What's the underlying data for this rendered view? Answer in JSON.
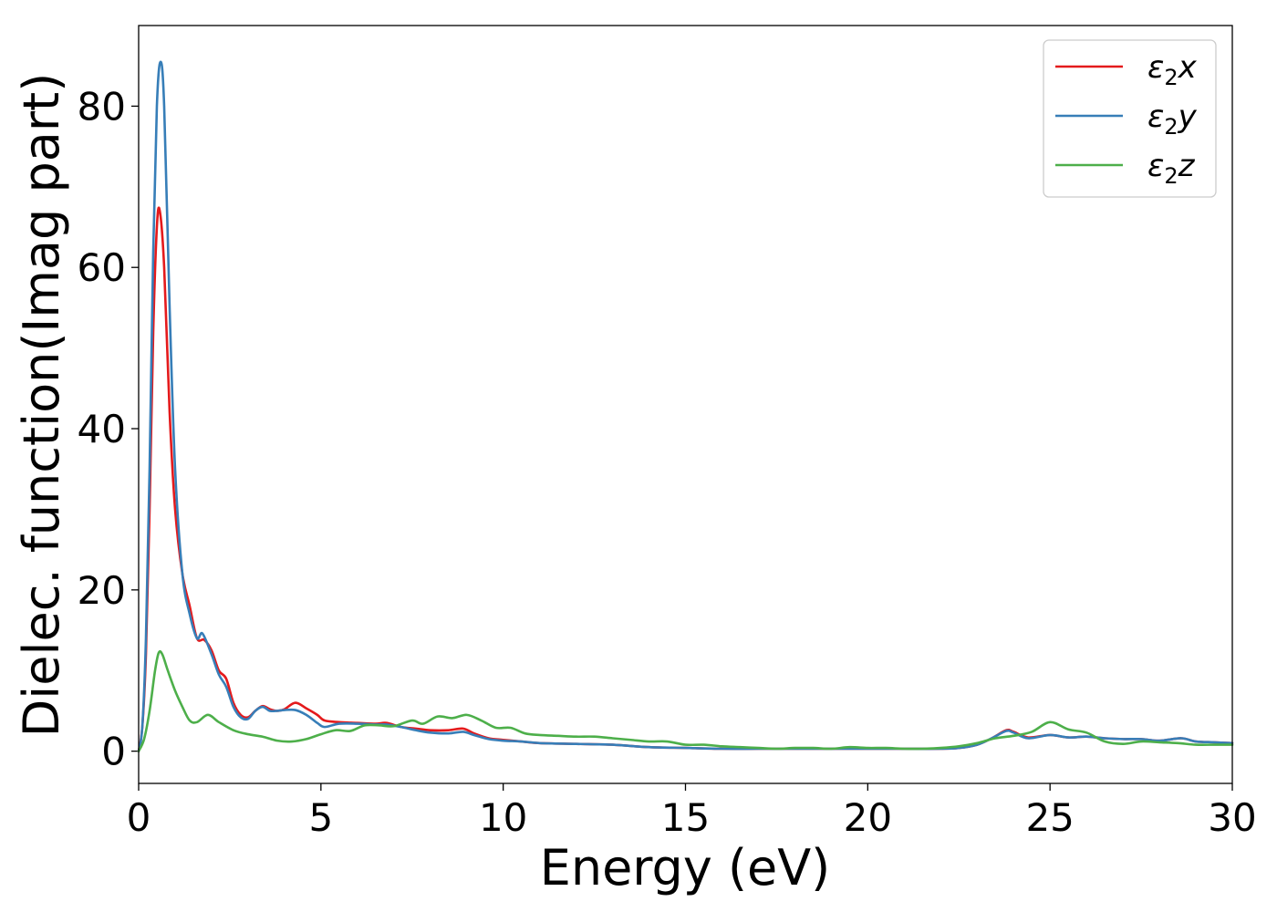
{
  "chart_data": {
    "type": "line",
    "title": "",
    "xlabel": "Energy (eV)",
    "ylabel": "Dielec. function(Imag part)",
    "xlim": [
      0,
      30
    ],
    "ylim": [
      -4,
      90
    ],
    "xticks": [
      0,
      5,
      10,
      15,
      20,
      25,
      30
    ],
    "xtick_labels": [
      "0",
      "5",
      "10",
      "15",
      "20",
      "25",
      "30"
    ],
    "yticks": [
      0,
      20,
      40,
      60,
      80
    ],
    "ytick_labels": [
      "0",
      "20",
      "40",
      "60",
      "80"
    ],
    "grid": false,
    "legend_position": "top-right",
    "series": [
      {
        "name": "ε₂x",
        "legend_main": "ε",
        "legend_sub": "2",
        "legend_suffix": "x",
        "color": "#e41a1c",
        "points": [
          [
            0,
            0
          ],
          [
            0.1,
            3
          ],
          [
            0.2,
            12
          ],
          [
            0.3,
            30
          ],
          [
            0.4,
            52
          ],
          [
            0.5,
            65
          ],
          [
            0.58,
            67
          ],
          [
            0.7,
            60
          ],
          [
            0.85,
            42
          ],
          [
            1.0,
            30
          ],
          [
            1.2,
            22
          ],
          [
            1.4,
            18
          ],
          [
            1.6,
            14
          ],
          [
            1.8,
            13.8
          ],
          [
            2.0,
            12.5
          ],
          [
            2.2,
            10
          ],
          [
            2.4,
            9
          ],
          [
            2.6,
            6
          ],
          [
            2.8,
            4.5
          ],
          [
            3.0,
            4.2
          ],
          [
            3.2,
            5
          ],
          [
            3.4,
            5.6
          ],
          [
            3.6,
            5.2
          ],
          [
            3.8,
            5
          ],
          [
            4.0,
            5.2
          ],
          [
            4.3,
            6
          ],
          [
            4.6,
            5.3
          ],
          [
            4.9,
            4.5
          ],
          [
            5.1,
            3.8
          ],
          [
            5.5,
            3.6
          ],
          [
            6.0,
            3.5
          ],
          [
            6.5,
            3.4
          ],
          [
            6.8,
            3.5
          ],
          [
            7.2,
            3.0
          ],
          [
            7.6,
            2.8
          ],
          [
            8.0,
            2.6
          ],
          [
            8.5,
            2.6
          ],
          [
            8.9,
            2.8
          ],
          [
            9.2,
            2.2
          ],
          [
            9.6,
            1.6
          ],
          [
            10.0,
            1.4
          ],
          [
            10.5,
            1.2
          ],
          [
            11.0,
            1.0
          ],
          [
            12.0,
            0.9
          ],
          [
            13.0,
            0.8
          ],
          [
            14.0,
            0.5
          ],
          [
            15.0,
            0.4
          ],
          [
            16.0,
            0.3
          ],
          [
            17.0,
            0.3
          ],
          [
            18.0,
            0.3
          ],
          [
            19.0,
            0.3
          ],
          [
            20.0,
            0.3
          ],
          [
            21.0,
            0.3
          ],
          [
            22.0,
            0.3
          ],
          [
            22.5,
            0.4
          ],
          [
            23.0,
            0.8
          ],
          [
            23.4,
            1.6
          ],
          [
            23.8,
            2.6
          ],
          [
            24.0,
            2.4
          ],
          [
            24.4,
            1.7
          ],
          [
            25.0,
            2.0
          ],
          [
            25.5,
            1.7
          ],
          [
            26.0,
            1.8
          ],
          [
            26.5,
            1.6
          ],
          [
            27.0,
            1.5
          ],
          [
            27.5,
            1.5
          ],
          [
            28.0,
            1.3
          ],
          [
            28.6,
            1.6
          ],
          [
            29.0,
            1.2
          ],
          [
            29.5,
            1.1
          ],
          [
            30.0,
            1.0
          ]
        ]
      },
      {
        "name": "ε₂y",
        "legend_main": "ε",
        "legend_sub": "2",
        "legend_suffix": "y",
        "color": "#377eb8",
        "points": [
          [
            0,
            0
          ],
          [
            0.1,
            3
          ],
          [
            0.2,
            14
          ],
          [
            0.3,
            35
          ],
          [
            0.4,
            62
          ],
          [
            0.5,
            80
          ],
          [
            0.6,
            85.5
          ],
          [
            0.7,
            80
          ],
          [
            0.85,
            55
          ],
          [
            1.0,
            35
          ],
          [
            1.2,
            22
          ],
          [
            1.4,
            17
          ],
          [
            1.6,
            14
          ],
          [
            1.75,
            14.6
          ],
          [
            2.0,
            12
          ],
          [
            2.2,
            9.5
          ],
          [
            2.4,
            8
          ],
          [
            2.6,
            5.5
          ],
          [
            2.8,
            4.2
          ],
          [
            3.0,
            4.0
          ],
          [
            3.2,
            5
          ],
          [
            3.4,
            5.5
          ],
          [
            3.6,
            5.0
          ],
          [
            3.8,
            5.0
          ],
          [
            4.0,
            5.1
          ],
          [
            4.3,
            5.1
          ],
          [
            4.6,
            4.5
          ],
          [
            4.9,
            3.5
          ],
          [
            5.1,
            3.0
          ],
          [
            5.5,
            3.4
          ],
          [
            6.0,
            3.4
          ],
          [
            6.5,
            3.3
          ],
          [
            6.8,
            3.3
          ],
          [
            7.2,
            3.0
          ],
          [
            7.6,
            2.6
          ],
          [
            8.0,
            2.3
          ],
          [
            8.5,
            2.2
          ],
          [
            8.9,
            2.4
          ],
          [
            9.2,
            2.0
          ],
          [
            9.6,
            1.5
          ],
          [
            10.0,
            1.3
          ],
          [
            10.5,
            1.2
          ],
          [
            11.0,
            1.0
          ],
          [
            12.0,
            0.9
          ],
          [
            13.0,
            0.8
          ],
          [
            14.0,
            0.5
          ],
          [
            15.0,
            0.4
          ],
          [
            16.0,
            0.3
          ],
          [
            17.0,
            0.3
          ],
          [
            18.0,
            0.3
          ],
          [
            19.0,
            0.3
          ],
          [
            20.0,
            0.3
          ],
          [
            21.0,
            0.3
          ],
          [
            22.0,
            0.3
          ],
          [
            22.5,
            0.4
          ],
          [
            23.0,
            0.8
          ],
          [
            23.4,
            1.6
          ],
          [
            23.8,
            2.5
          ],
          [
            24.0,
            2.3
          ],
          [
            24.4,
            1.6
          ],
          [
            25.0,
            2.0
          ],
          [
            25.5,
            1.7
          ],
          [
            26.0,
            1.8
          ],
          [
            26.5,
            1.6
          ],
          [
            27.0,
            1.5
          ],
          [
            27.5,
            1.5
          ],
          [
            28.0,
            1.3
          ],
          [
            28.6,
            1.6
          ],
          [
            29.0,
            1.2
          ],
          [
            29.5,
            1.1
          ],
          [
            30.0,
            1.0
          ]
        ]
      },
      {
        "name": "ε₂z",
        "legend_main": "ε",
        "legend_sub": "2",
        "legend_suffix": "z",
        "color": "#4daf4a",
        "points": [
          [
            0,
            0
          ],
          [
            0.15,
            1.5
          ],
          [
            0.3,
            5
          ],
          [
            0.45,
            10
          ],
          [
            0.55,
            12.2
          ],
          [
            0.65,
            12
          ],
          [
            0.8,
            10
          ],
          [
            1.0,
            7.5
          ],
          [
            1.2,
            5.5
          ],
          [
            1.4,
            3.8
          ],
          [
            1.6,
            3.6
          ],
          [
            1.9,
            4.5
          ],
          [
            2.2,
            3.6
          ],
          [
            2.6,
            2.6
          ],
          [
            3.0,
            2.1
          ],
          [
            3.4,
            1.8
          ],
          [
            3.8,
            1.3
          ],
          [
            4.2,
            1.2
          ],
          [
            4.6,
            1.5
          ],
          [
            5.0,
            2.1
          ],
          [
            5.4,
            2.6
          ],
          [
            5.8,
            2.5
          ],
          [
            6.2,
            3.2
          ],
          [
            6.6,
            3.2
          ],
          [
            7.0,
            3.1
          ],
          [
            7.5,
            3.8
          ],
          [
            7.8,
            3.4
          ],
          [
            8.2,
            4.3
          ],
          [
            8.6,
            4.1
          ],
          [
            9.0,
            4.5
          ],
          [
            9.4,
            3.8
          ],
          [
            9.8,
            2.9
          ],
          [
            10.2,
            2.9
          ],
          [
            10.6,
            2.2
          ],
          [
            11.0,
            2.0
          ],
          [
            11.5,
            1.9
          ],
          [
            12.0,
            1.8
          ],
          [
            12.5,
            1.8
          ],
          [
            13.0,
            1.6
          ],
          [
            13.5,
            1.4
          ],
          [
            14.0,
            1.2
          ],
          [
            14.5,
            1.2
          ],
          [
            15.0,
            0.8
          ],
          [
            15.5,
            0.8
          ],
          [
            16.0,
            0.6
          ],
          [
            16.5,
            0.5
          ],
          [
            17.0,
            0.4
          ],
          [
            17.5,
            0.3
          ],
          [
            18.0,
            0.4
          ],
          [
            18.5,
            0.4
          ],
          [
            19.0,
            0.3
          ],
          [
            19.5,
            0.5
          ],
          [
            20.0,
            0.4
          ],
          [
            20.5,
            0.4
          ],
          [
            21.0,
            0.3
          ],
          [
            21.5,
            0.3
          ],
          [
            22.0,
            0.4
          ],
          [
            22.5,
            0.6
          ],
          [
            23.0,
            1.0
          ],
          [
            23.5,
            1.6
          ],
          [
            24.0,
            1.9
          ],
          [
            24.5,
            2.4
          ],
          [
            25.0,
            3.6
          ],
          [
            25.5,
            2.7
          ],
          [
            26.0,
            2.3
          ],
          [
            26.5,
            1.2
          ],
          [
            27.0,
            0.9
          ],
          [
            27.5,
            1.2
          ],
          [
            28.0,
            1.1
          ],
          [
            28.5,
            1.0
          ],
          [
            29.0,
            0.8
          ],
          [
            29.5,
            0.8
          ],
          [
            30.0,
            0.8
          ]
        ]
      }
    ]
  }
}
